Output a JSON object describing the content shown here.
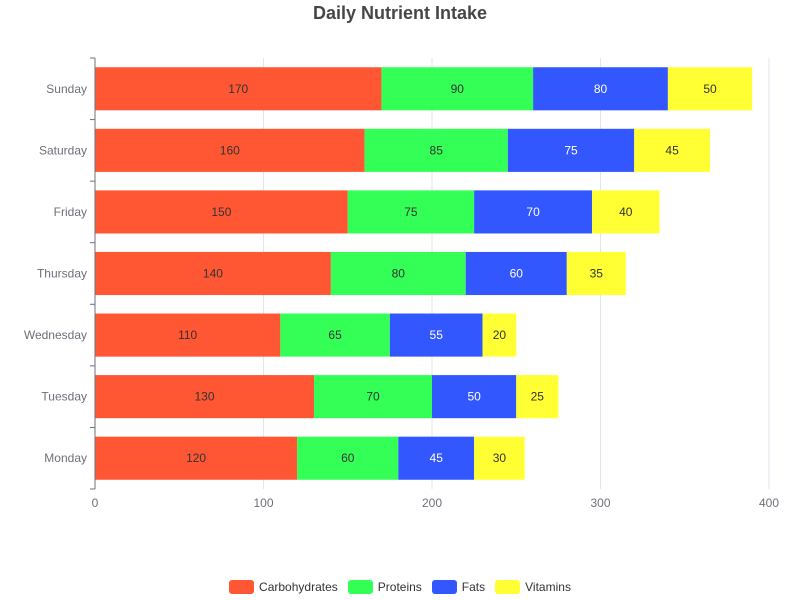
{
  "chart_data": {
    "type": "bar",
    "orientation": "horizontal",
    "stacked": true,
    "title": "Daily Nutrient Intake",
    "categories": [
      "Monday",
      "Tuesday",
      "Wednesday",
      "Thursday",
      "Friday",
      "Saturday",
      "Sunday"
    ],
    "series": [
      {
        "name": "Carbohydrates",
        "color": "#FF5733",
        "values": [
          120,
          130,
          110,
          140,
          150,
          160,
          170
        ]
      },
      {
        "name": "Proteins",
        "color": "#33FF57",
        "values": [
          60,
          70,
          65,
          80,
          75,
          85,
          90
        ]
      },
      {
        "name": "Fats",
        "color": "#3357FF",
        "values": [
          45,
          50,
          55,
          60,
          70,
          75,
          80
        ]
      },
      {
        "name": "Vitamins",
        "color": "#FFFF33",
        "values": [
          30,
          25,
          20,
          35,
          40,
          45,
          50
        ]
      }
    ],
    "xlim": [
      0,
      400
    ],
    "x_ticks": [
      0,
      100,
      200,
      300,
      400
    ],
    "grid": true,
    "legend": "bottom-center",
    "data_labels": true
  }
}
